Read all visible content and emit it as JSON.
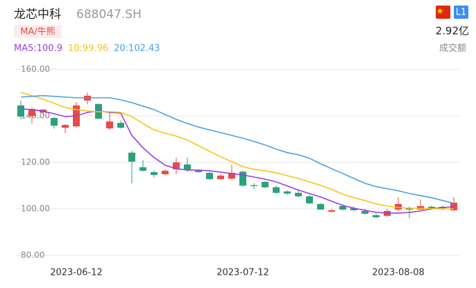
{
  "header": {
    "title": "龙芯中科",
    "code": "688047.SH",
    "button": "MA/牛熊",
    "badge": "L1",
    "volume": "2.92亿",
    "volume_label": "成交额"
  },
  "chart_data": {
    "type": "candlestick",
    "categories": [
      null,
      null,
      null,
      null,
      null,
      "2023-06-12",
      null,
      null,
      null,
      null,
      null,
      null,
      null,
      null,
      null,
      null,
      null,
      null,
      null,
      null,
      "2023-07-12",
      null,
      null,
      null,
      null,
      null,
      null,
      null,
      null,
      null,
      null,
      null,
      null,
      null,
      "2023-08-08",
      null,
      null,
      null,
      null,
      null
    ],
    "open": [
      144.5,
      140.0,
      141.5,
      139.1,
      134.9,
      135.5,
      146.6,
      145.1,
      134.6,
      137.0,
      124.2,
      117.9,
      115.8,
      114.9,
      117.0,
      119.1,
      116.4,
      115.5,
      112.8,
      113.0,
      116.0,
      110.2,
      111.6,
      109.3,
      107.5,
      106.9,
      105.4,
      102.1,
      98.8,
      101.2,
      100.3,
      99.1,
      97.3,
      97.0,
      99.7,
      100.3,
      99.7,
      100.9,
      100.9,
      99.4
    ],
    "close": [
      139.7,
      143.0,
      142.7,
      135.8,
      136.1,
      144.5,
      148.7,
      138.8,
      137.6,
      134.9,
      120.3,
      116.4,
      114.6,
      116.4,
      120.0,
      116.7,
      115.8,
      112.8,
      114.3,
      115.5,
      110.0,
      109.8,
      109.3,
      106.9,
      106.6,
      105.4,
      102.4,
      99.7,
      99.4,
      99.7,
      99.4,
      97.9,
      96.4,
      99.1,
      102.1,
      99.7,
      101.2,
      100.3,
      100.3,
      102.7
    ],
    "high": [
      146.6,
      143.6,
      143.0,
      139.5,
      136.5,
      146.0,
      150.0,
      145.5,
      142.0,
      138.0,
      125.0,
      121.0,
      116.5,
      117.0,
      122.0,
      122.0,
      117.0,
      116.0,
      115.0,
      119.0,
      116.5,
      111.0,
      112.0,
      110.0,
      108.0,
      108.5,
      106.0,
      102.5,
      100.0,
      102.0,
      101.0,
      100.0,
      98.0,
      100.0,
      105.0,
      101.0,
      104.0,
      101.5,
      101.5,
      105.0
    ],
    "low": [
      138.5,
      136.7,
      140.5,
      134.5,
      132.5,
      135.0,
      145.0,
      138.5,
      134.0,
      134.5,
      111.0,
      116.0,
      113.5,
      114.5,
      115.0,
      116.0,
      115.5,
      112.5,
      112.5,
      112.5,
      109.5,
      108.5,
      109.0,
      106.5,
      106.0,
      105.0,
      102.0,
      99.5,
      98.5,
      99.3,
      99.0,
      97.5,
      95.8,
      96.5,
      99.0,
      96.0,
      99.5,
      99.5,
      99.5,
      99.0
    ],
    "up_color": "#e84a4a",
    "down_color": "#2aa17c",
    "series": [
      {
        "name": "MA5:100.9",
        "color": "#9b3fe0",
        "values": [
          143.0,
          142.7,
          142.1,
          140.9,
          139.7,
          140.0,
          141.5,
          142.1,
          141.5,
          141.2,
          131.6,
          126.3,
          122.1,
          118.8,
          117.3,
          116.7,
          116.7,
          116.4,
          115.8,
          115.2,
          114.6,
          113.7,
          112.8,
          111.6,
          109.9,
          108.1,
          106.6,
          105.1,
          103.3,
          101.5,
          100.3,
          99.4,
          98.5,
          98.2,
          98.2,
          98.5,
          99.1,
          100.0,
          100.6,
          100.9
        ]
      },
      {
        "name": "10:99.96",
        "color": "#f5c518",
        "values": [
          150.1,
          148.7,
          147.2,
          145.4,
          143.6,
          142.7,
          142.1,
          141.8,
          141.8,
          141.5,
          139.7,
          136.7,
          134.0,
          132.5,
          131.3,
          129.6,
          127.2,
          124.8,
          122.4,
          120.3,
          118.2,
          117.0,
          116.4,
          115.5,
          114.3,
          113.1,
          111.6,
          110.1,
          108.4,
          106.3,
          104.8,
          103.6,
          102.1,
          101.2,
          100.6,
          100.3,
          100.2,
          100.1,
          100.0,
          99.96
        ]
      },
      {
        "name": "20:102.43",
        "color": "#4a9fe8",
        "values": [
          148.1,
          148.4,
          148.7,
          148.4,
          148.1,
          147.8,
          147.8,
          147.8,
          147.8,
          146.9,
          145.7,
          144.2,
          142.7,
          140.6,
          138.5,
          136.7,
          135.2,
          134.0,
          132.8,
          131.6,
          130.4,
          129.0,
          127.5,
          125.7,
          124.2,
          123.3,
          121.8,
          119.4,
          117.3,
          115.2,
          113.1,
          111.0,
          109.6,
          108.7,
          107.8,
          106.6,
          105.7,
          104.8,
          103.6,
          102.43
        ]
      }
    ],
    "ylim": [
      76,
      164
    ],
    "yticks": [
      {
        "value": 160,
        "label": "160.00"
      },
      {
        "value": 140,
        "label": "140.00"
      },
      {
        "value": 120,
        "label": "120.00"
      },
      {
        "value": 100,
        "label": "100.00"
      },
      {
        "value": 80,
        "label": "80.00"
      }
    ],
    "grid": true
  }
}
